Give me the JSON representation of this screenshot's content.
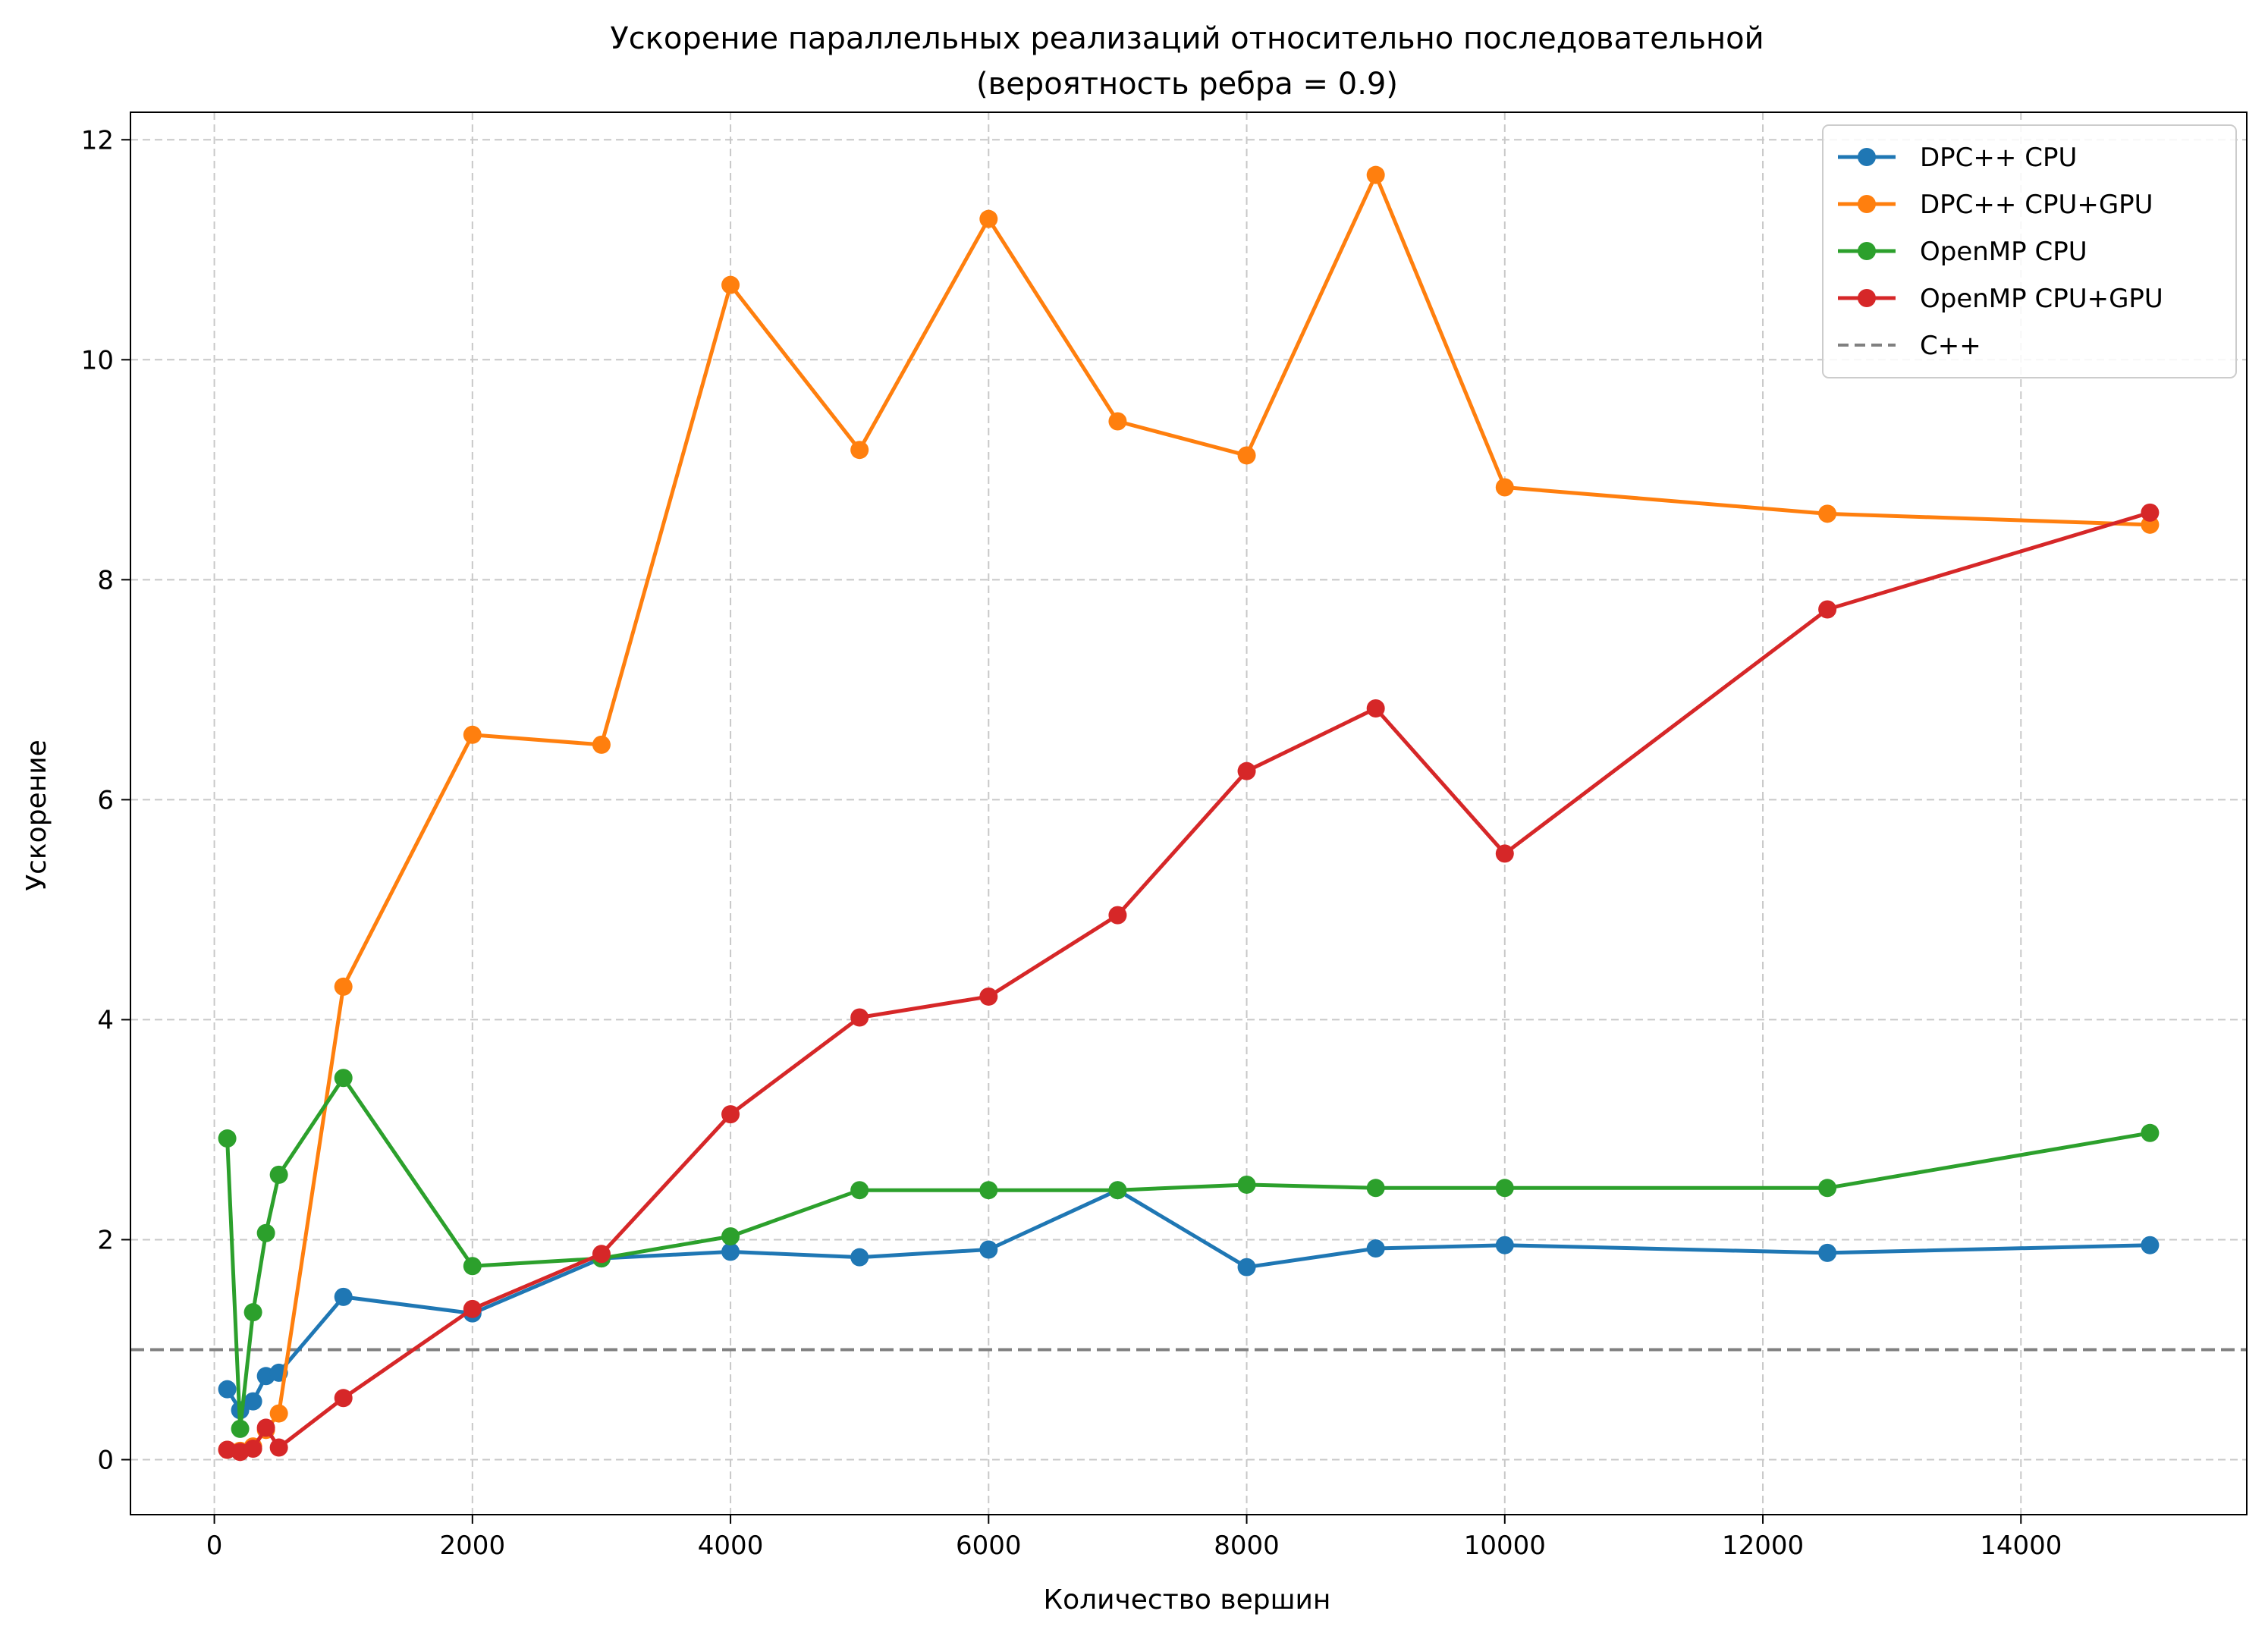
{
  "chart_data": {
    "type": "line",
    "title": "Ускорение параллельных реализаций относительно последовательной",
    "subtitle": "(вероятность ребра = 0.9)",
    "xlabel": "Количество вершин",
    "ylabel": "Ускорение",
    "xlim": [
      -650,
      15750
    ],
    "ylim": [
      -0.5,
      12.25
    ],
    "xticks": [
      0,
      2000,
      4000,
      6000,
      8000,
      10000,
      12000,
      14000
    ],
    "yticks": [
      0,
      2,
      4,
      6,
      8,
      10,
      12
    ],
    "grid": true,
    "legend_position": "top-right",
    "x": [
      100,
      200,
      300,
      400,
      500,
      1000,
      2000,
      3000,
      4000,
      5000,
      6000,
      7000,
      8000,
      9000,
      10000,
      12500,
      15000
    ],
    "series": [
      {
        "name": "DPC++ CPU",
        "color": "#1f77b4",
        "values": [
          0.64,
          0.45,
          0.53,
          0.76,
          0.79,
          1.48,
          1.33,
          1.83,
          1.89,
          1.84,
          1.91,
          2.45,
          1.75,
          1.92,
          1.95,
          1.88,
          1.95
        ]
      },
      {
        "name": "DPC++ CPU+GPU",
        "color": "#ff7f0e",
        "values": [
          0.09,
          0.08,
          0.12,
          0.27,
          0.42,
          4.3,
          6.59,
          6.5,
          10.68,
          9.18,
          11.28,
          9.44,
          9.13,
          11.68,
          8.84,
          8.6,
          8.5
        ]
      },
      {
        "name": "OpenMP CPU",
        "color": "#2ca02c",
        "values": [
          2.92,
          0.28,
          1.34,
          2.06,
          2.59,
          3.47,
          1.76,
          1.83,
          2.03,
          2.45,
          2.45,
          2.45,
          2.5,
          2.47,
          2.47,
          2.47,
          2.97
        ]
      },
      {
        "name": "OpenMP CPU+GPU",
        "color": "#d62728",
        "values": [
          0.09,
          0.07,
          0.1,
          0.29,
          0.11,
          0.56,
          1.37,
          1.87,
          3.14,
          4.02,
          4.21,
          4.95,
          6.26,
          6.83,
          5.51,
          7.73,
          8.61
        ]
      }
    ],
    "reference_line": {
      "name": "C++",
      "value": 1.0,
      "color": "#808080"
    }
  }
}
